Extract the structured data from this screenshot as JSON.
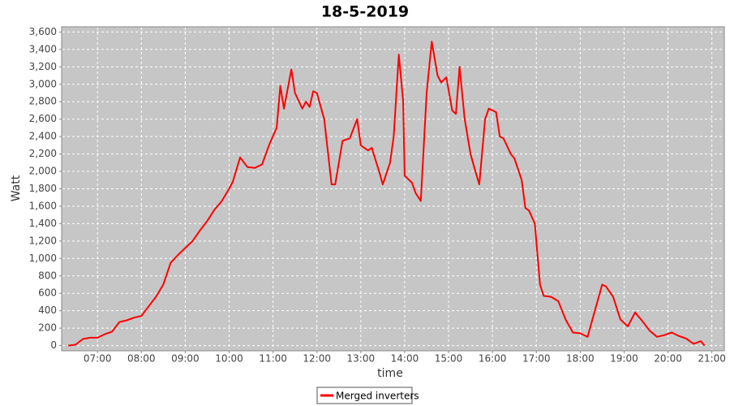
{
  "chart_data": {
    "type": "line",
    "title": "18-5-2019",
    "x_label": "time",
    "y_label": "Watt",
    "x": [
      "06:20",
      "06:30",
      "06:40",
      "06:50",
      "07:00",
      "07:10",
      "07:20",
      "07:30",
      "07:40",
      "07:50",
      "08:00",
      "08:10",
      "08:20",
      "08:30",
      "08:40",
      "08:50",
      "09:00",
      "09:10",
      "09:20",
      "09:30",
      "09:40",
      "09:50",
      "10:00",
      "10:05",
      "10:15",
      "10:25",
      "10:35",
      "10:45",
      "10:55",
      "11:05",
      "11:10",
      "11:15",
      "11:25",
      "11:30",
      "11:40",
      "11:45",
      "11:50",
      "11:55",
      "12:00",
      "12:10",
      "12:20",
      "12:25",
      "12:35",
      "12:45",
      "12:55",
      "13:00",
      "13:10",
      "13:15",
      "13:25",
      "13:30",
      "13:40",
      "13:45",
      "13:52",
      "13:58",
      "14:00",
      "14:10",
      "14:15",
      "14:22",
      "14:30",
      "14:37",
      "14:45",
      "14:50",
      "14:57",
      "15:05",
      "15:10",
      "15:15",
      "15:22",
      "15:30",
      "15:35",
      "15:42",
      "15:50",
      "15:55",
      "16:05",
      "16:10",
      "16:15",
      "16:25",
      "16:30",
      "16:40",
      "16:45",
      "16:50",
      "16:58",
      "17:05",
      "17:10",
      "17:20",
      "17:30",
      "17:40",
      "17:50",
      "18:00",
      "18:10",
      "18:20",
      "18:30",
      "18:35",
      "18:45",
      "18:55",
      "19:05",
      "19:15",
      "19:25",
      "19:35",
      "19:45",
      "19:55",
      "20:05",
      "20:15",
      "20:25",
      "20:35",
      "20:45",
      "20:50"
    ],
    "series": [
      {
        "name": "Merged inverters",
        "color": "#ff0000",
        "values": [
          0,
          10,
          75,
          90,
          90,
          130,
          160,
          270,
          290,
          320,
          340,
          450,
          560,
          700,
          950,
          1040,
          1120,
          1200,
          1320,
          1430,
          1560,
          1660,
          1800,
          1880,
          2160,
          2050,
          2040,
          2080,
          2310,
          2500,
          2980,
          2720,
          3170,
          2900,
          2720,
          2800,
          2740,
          2920,
          2900,
          2600,
          1850,
          1850,
          2350,
          2380,
          2600,
          2300,
          2240,
          2270,
          2000,
          1850,
          2100,
          2400,
          3340,
          2800,
          1950,
          1870,
          1750,
          1660,
          2900,
          3490,
          3100,
          3020,
          3080,
          2700,
          2660,
          3200,
          2600,
          2200,
          2050,
          1850,
          2600,
          2720,
          2680,
          2400,
          2380,
          2200,
          2150,
          1900,
          1580,
          1550,
          1400,
          700,
          570,
          560,
          510,
          300,
          150,
          140,
          100,
          400,
          700,
          680,
          560,
          300,
          220,
          380,
          280,
          170,
          100,
          120,
          150,
          110,
          80,
          20,
          50,
          0
        ]
      }
    ],
    "xlim": [
      "06:11",
      "21:17"
    ],
    "xticks": [
      "07:00",
      "08:00",
      "09:00",
      "10:00",
      "11:00",
      "12:00",
      "13:00",
      "14:00",
      "15:00",
      "16:00",
      "17:00",
      "18:00",
      "19:00",
      "20:00",
      "21:00"
    ],
    "ylim": [
      -60,
      3660
    ],
    "yticks": [
      0,
      200,
      400,
      600,
      800,
      {
        "value": 1000,
        "label": "1,000"
      },
      {
        "value": 1200,
        "label": "1,200"
      },
      {
        "value": 1400,
        "label": "1,400"
      },
      {
        "value": 1600,
        "label": "1,600"
      },
      {
        "value": 1800,
        "label": "1,800"
      },
      {
        "value": 2000,
        "label": "2,000"
      },
      {
        "value": 2200,
        "label": "2,200"
      },
      {
        "value": 2400,
        "label": "2,400"
      },
      {
        "value": 2600,
        "label": "2,600"
      },
      {
        "value": 2800,
        "label": "2,800"
      },
      {
        "value": 3000,
        "label": "3,000"
      },
      {
        "value": 3200,
        "label": "3,200"
      },
      {
        "value": 3400,
        "label": "3,400"
      },
      {
        "value": 3600,
        "label": "3,600"
      }
    ],
    "grid": true
  }
}
